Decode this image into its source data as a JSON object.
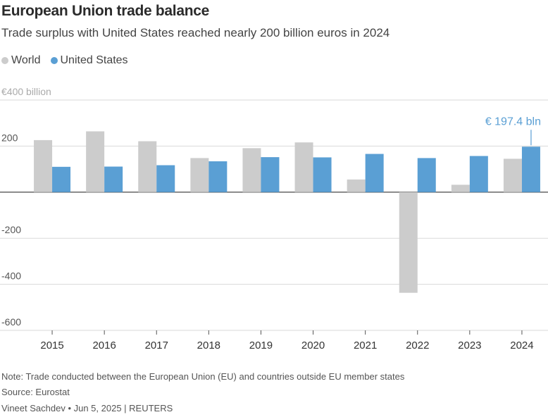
{
  "title": "European Union trade balance",
  "subtitle": "Trade surplus with United States reached nearly 200 billion euros in 2024",
  "legend": [
    {
      "name": "World",
      "color": "#cccccc"
    },
    {
      "name": "United States",
      "color": "#5a9fd4"
    }
  ],
  "chart_data": {
    "type": "bar",
    "categories": [
      "2015",
      "2016",
      "2017",
      "2018",
      "2019",
      "2020",
      "2021",
      "2022",
      "2023",
      "2024"
    ],
    "series": [
      {
        "name": "World",
        "color": "#cccccc",
        "values": [
          226,
          264,
          221,
          148,
          191,
          216,
          55,
          -437,
          32,
          145
        ]
      },
      {
        "name": "United States",
        "color": "#5a9fd4",
        "values": [
          110,
          111,
          117,
          134,
          152,
          151,
          166,
          148,
          157,
          197.4
        ]
      }
    ],
    "ylim": [
      -600,
      400
    ],
    "yticks": [
      -600,
      -400,
      -200,
      0,
      200,
      400
    ],
    "ytick_labels": [
      "-600",
      "-400",
      "-200",
      "",
      "200",
      "€400 billion"
    ],
    "annotation": {
      "category": "2024",
      "series": "United States",
      "text": "€ 197.4 bln"
    },
    "grid": true
  },
  "footer": {
    "note": "Note: Trade conducted between the European Union (EU) and countries outside EU member states",
    "source": "Source: Eurostat",
    "credit": "Vineet Sachdev • Jun 5, 2025 | REUTERS"
  }
}
